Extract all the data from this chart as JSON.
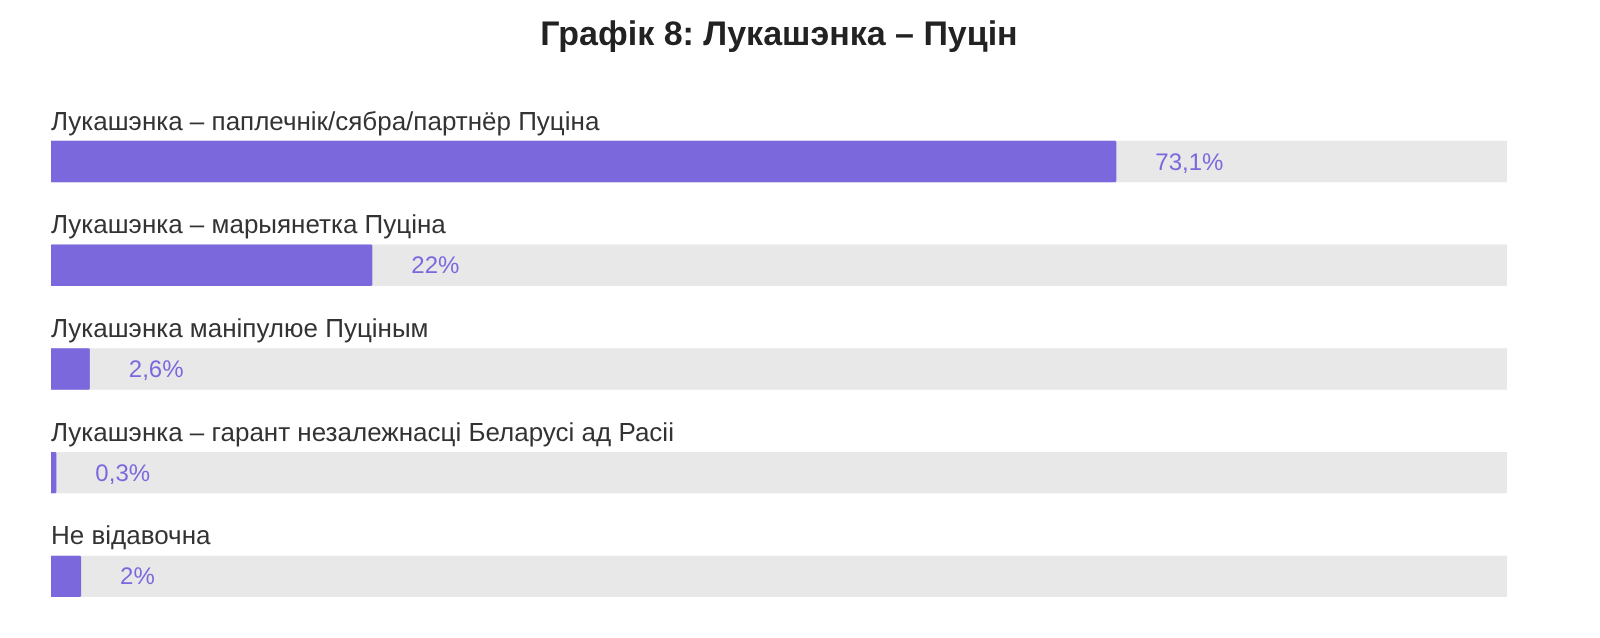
{
  "chart_data": {
    "type": "bar",
    "orientation": "horizontal",
    "title": "Графік 8: Лукашэнка – Пуцін",
    "categories": [
      "Лукашэнка – паплечнік/сябра/партнёр Пуціна",
      "Лукашэнка – марыянетка Пуціна",
      "Лукашэнка маніпулюе Пуціным",
      "Лукашэнка – гарант незалежнасці Беларусі ад Расіі",
      "Не відавочна"
    ],
    "values": [
      73.1,
      22,
      2.6,
      0.3,
      2
    ],
    "value_labels": [
      "73,1%",
      "22%",
      "2,6%",
      "0,3%",
      "2%"
    ],
    "color": "#7b68dd",
    "xlim": [
      0,
      100
    ],
    "tick_labels": false,
    "grid": false
  }
}
